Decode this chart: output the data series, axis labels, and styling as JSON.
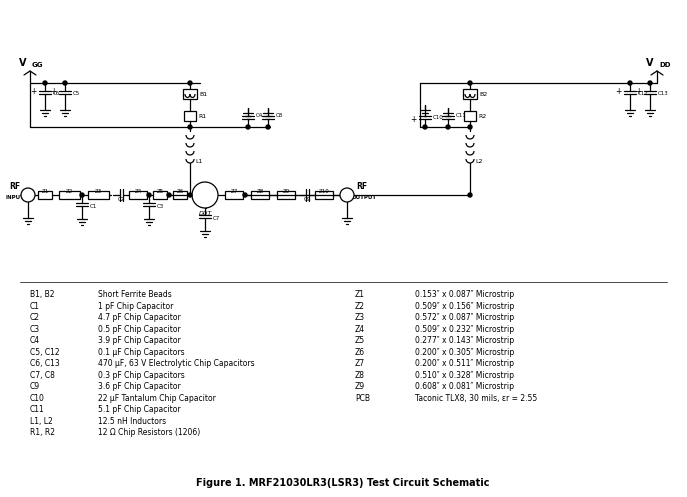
{
  "title": "Figure 1. MRF21030LR3(LSR3) Test Circuit Schematic",
  "bg_color": "#ffffff",
  "line_color": "#000000",
  "bom_left": [
    [
      "B1, B2",
      "Short Ferrite Beads"
    ],
    [
      "C1",
      "1 pF Chip Capacitor"
    ],
    [
      "C2",
      "4.7 pF Chip Capacitor"
    ],
    [
      "C3",
      "0.5 pF Chip Capacitor"
    ],
    [
      "C4",
      "3.9 pF Chip Capacitor"
    ],
    [
      "C5, C12",
      "0.1 μF Chip Capacitors"
    ],
    [
      "C6, C13",
      "470 μF, 63 V Electrolytic Chip Capacitors"
    ],
    [
      "C7, C8",
      "0.3 pF Chip Capacitors"
    ],
    [
      "C9",
      "3.6 pF Chip Capacitor"
    ],
    [
      "C10",
      "22 μF Tantalum Chip Capacitor"
    ],
    [
      "C11",
      "5.1 pF Chip Capacitor"
    ],
    [
      "L1, L2",
      "12.5 nH Inductors"
    ],
    [
      "R1, R2",
      "12 Ω Chip Resistors (1206)"
    ]
  ],
  "bom_right": [
    [
      "Z1",
      "0.153″ x 0.087″ Microstrip"
    ],
    [
      "Z2",
      "0.509″ x 0.156″ Microstrip"
    ],
    [
      "Z3",
      "0.572″ x 0.087″ Microstrip"
    ],
    [
      "Z4",
      "0.509″ x 0.232″ Microstrip"
    ],
    [
      "Z5",
      "0.277″ x 0.143″ Microstrip"
    ],
    [
      "Z6",
      "0.200″ x 0.305″ Microstrip"
    ],
    [
      "Z7",
      "0.200″ x 0.511″ Microstrip"
    ],
    [
      "Z8",
      "0.510″ x 0.328″ Microstrip"
    ],
    [
      "Z9",
      "0.608″ x 0.081″ Microstrip"
    ],
    [
      "PCB",
      "Taconic TLX8, 30 mils, εr = 2.55"
    ]
  ]
}
